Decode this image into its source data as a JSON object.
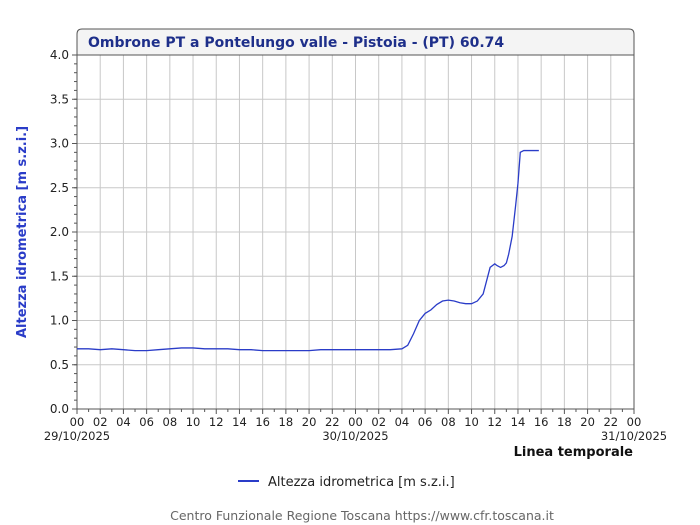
{
  "chart_data": {
    "type": "line",
    "title": "Ombrone PT a Pontelungo valle - Pistoia -  (PT) 60.74",
    "xlabel": "Linea temporale",
    "ylabel": "Altezza idrometrica [m s.z.i.]",
    "ylim": [
      0,
      4
    ],
    "y_ticks": [
      "0.0",
      "0.5",
      "1.0",
      "1.5",
      "2.0",
      "2.5",
      "3.0",
      "3.5",
      "4.0"
    ],
    "xlim_hours": [
      0,
      48
    ],
    "x_ticks": [
      "00",
      "02",
      "04",
      "06",
      "08",
      "10",
      "12",
      "14",
      "16",
      "18",
      "20",
      "22",
      "00",
      "02",
      "04",
      "06",
      "08",
      "10",
      "12",
      "14",
      "16",
      "18",
      "20",
      "22",
      "00"
    ],
    "date_labels": [
      {
        "text": "29/10/2025",
        "hour": 0
      },
      {
        "text": "30/10/2025",
        "hour": 24
      },
      {
        "text": "31/10/2025",
        "hour": 48
      }
    ],
    "grid": true,
    "legend_position": "bottom",
    "color": "#2a3cc8",
    "series": [
      {
        "name": "Altezza idrometrica [m s.z.i.]",
        "x": [
          0,
          1,
          2,
          3,
          4,
          5,
          6,
          7,
          8,
          9,
          10,
          11,
          12,
          13,
          14,
          15,
          16,
          17,
          18,
          19,
          20,
          21,
          22,
          23,
          24,
          25,
          26,
          27,
          28,
          28.5,
          29,
          29.5,
          30,
          30.5,
          31,
          31.5,
          32,
          32.5,
          33,
          33.5,
          34,
          34.5,
          35,
          35.3,
          35.6,
          36,
          36.2,
          36.5,
          36.8,
          37,
          37.2,
          37.5,
          37.8,
          38,
          38.2,
          38.5,
          38.8,
          39,
          39.2,
          39.4,
          39.6,
          39.8
        ],
        "y": [
          0.68,
          0.68,
          0.67,
          0.68,
          0.67,
          0.66,
          0.66,
          0.67,
          0.68,
          0.69,
          0.69,
          0.68,
          0.68,
          0.68,
          0.67,
          0.67,
          0.66,
          0.66,
          0.66,
          0.66,
          0.66,
          0.67,
          0.67,
          0.67,
          0.67,
          0.67,
          0.67,
          0.67,
          0.68,
          0.72,
          0.85,
          1.0,
          1.08,
          1.12,
          1.18,
          1.22,
          1.23,
          1.22,
          1.2,
          1.19,
          1.19,
          1.22,
          1.3,
          1.45,
          1.6,
          1.64,
          1.62,
          1.6,
          1.62,
          1.65,
          1.75,
          1.95,
          2.3,
          2.55,
          2.9,
          2.92,
          2.92,
          2.92,
          2.92,
          2.92,
          2.92,
          2.92
        ]
      }
    ]
  },
  "footer": "Centro Funzionale Regione Toscana https://www.cfr.toscana.it"
}
